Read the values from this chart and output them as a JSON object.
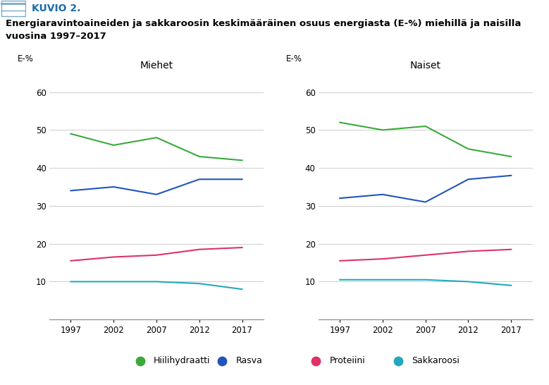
{
  "title_line1": "Energiaravintoaineiden ja sakkaroosin keskimääräinen osuus energiasta (E-%) miehillä ja naisilla",
  "title_line2": "vuosina 1997–2017",
  "header": "KUVIO 2.",
  "years": [
    1997,
    2002,
    2007,
    2012,
    2017
  ],
  "miehet": {
    "title": "Miehet",
    "Hiilihydraatti": [
      49,
      46,
      48,
      43,
      42
    ],
    "Rasva": [
      34,
      35,
      33,
      37,
      37
    ],
    "Proteiini": [
      15.5,
      16.5,
      17,
      18.5,
      19
    ],
    "Sakkaroosi": [
      10,
      10,
      10,
      9.5,
      8
    ]
  },
  "naiset": {
    "title": "Naiset",
    "Hiilihydraatti": [
      52,
      50,
      51,
      45,
      43
    ],
    "Rasva": [
      32,
      33,
      31,
      37,
      38
    ],
    "Proteiini": [
      15.5,
      16,
      17,
      18,
      18.5
    ],
    "Sakkaroosi": [
      10.5,
      10.5,
      10.5,
      10,
      9
    ]
  },
  "colors": {
    "Hiilihydraatti": "#3aaa3a",
    "Rasva": "#2255bb",
    "Proteiini": "#dd3366",
    "Sakkaroosi": "#22aabb"
  },
  "ylabel": "E-%",
  "ylim": [
    0,
    65
  ],
  "yticks": [
    0,
    10,
    20,
    30,
    40,
    50,
    60
  ],
  "legend_labels": [
    "Hiilihydraatti",
    "Rasva",
    "Proteiini",
    "Sakkaroosi"
  ],
  "background_color": "#ffffff",
  "header_bg": "#b8d8ee",
  "header_color": "#1a6ea8",
  "grid_color": "#cccccc"
}
